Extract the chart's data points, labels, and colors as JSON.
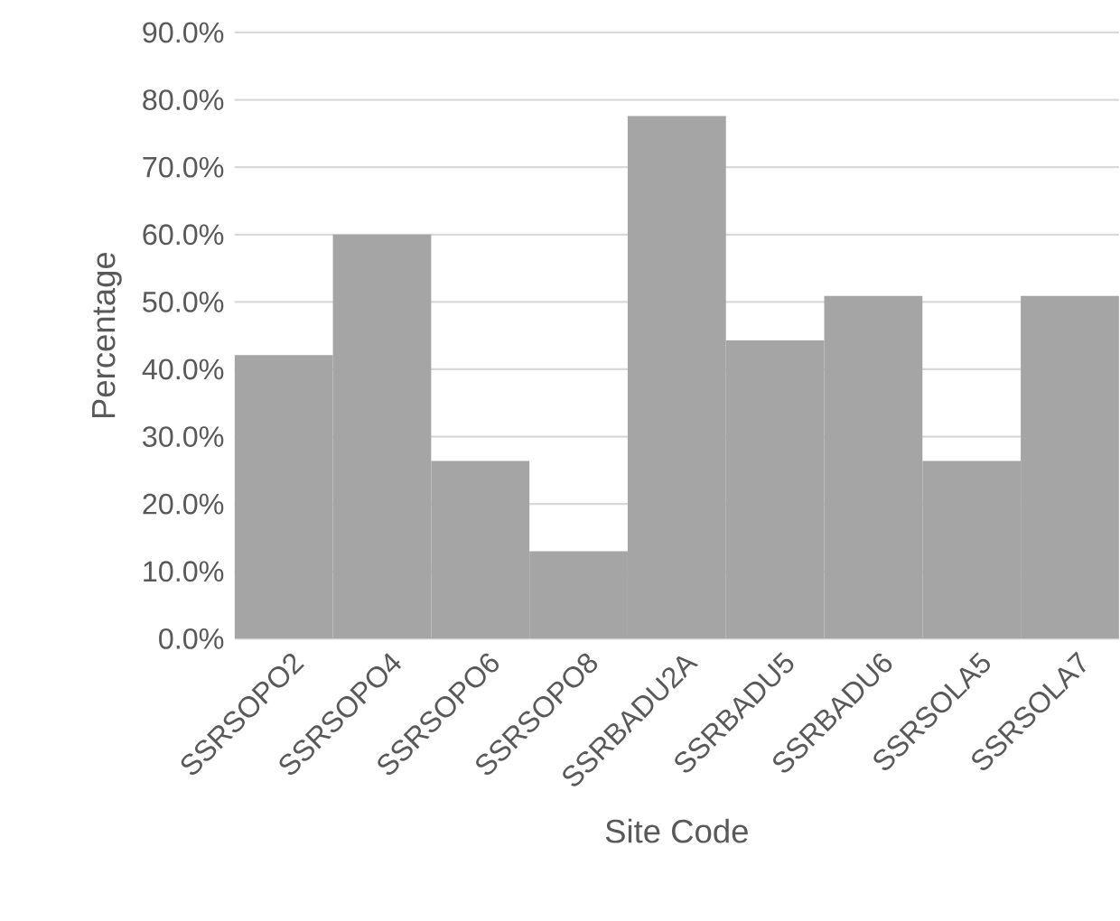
{
  "chart_data": {
    "type": "bar",
    "xlabel": "Site Code",
    "ylabel": "Percentage",
    "categories": [
      "SSRSOPO2",
      "SSRSOPO4",
      "SSRSOPO6",
      "SSRSOPO8",
      "SSRBADU2A",
      "SSRBADU5",
      "SSRBADU6",
      "SSRSOLA5",
      "SSRSOLA7"
    ],
    "values": [
      42.1,
      60.0,
      26.4,
      13.0,
      77.6,
      44.3,
      50.9,
      26.4,
      50.9
    ],
    "color": "#a5a5a5",
    "ylim": [
      0,
      90
    ],
    "yticks": [
      {
        "value": 0,
        "label": "0.0%"
      },
      {
        "value": 10,
        "label": "10.0%"
      },
      {
        "value": 20,
        "label": "20.0%"
      },
      {
        "value": 30,
        "label": "30.0%"
      },
      {
        "value": 40,
        "label": "40.0%"
      },
      {
        "value": 50,
        "label": "50.0%"
      },
      {
        "value": 60,
        "label": "60.0%"
      },
      {
        "value": 70,
        "label": "70.0%"
      },
      {
        "value": 80,
        "label": "80.0%"
      },
      {
        "value": 90,
        "label": "90.0%"
      }
    ],
    "grid": "y"
  }
}
